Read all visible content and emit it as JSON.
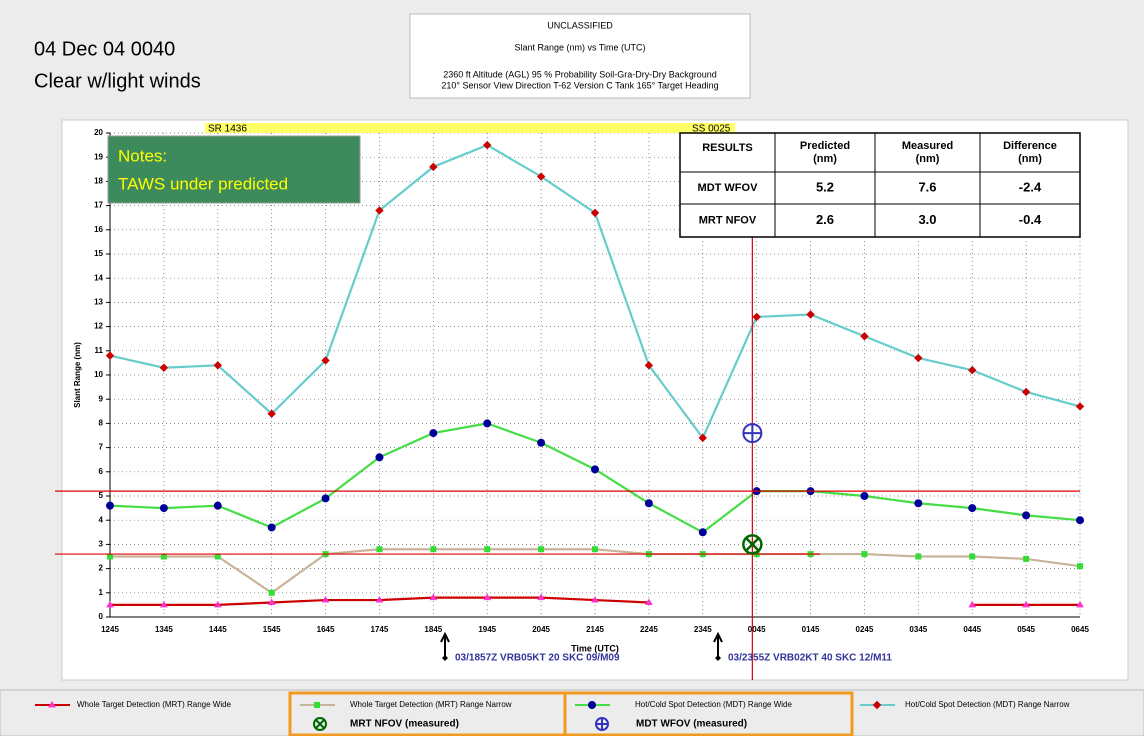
{
  "header": {
    "date_time": "04 Dec 04 0040",
    "weather": "Clear w/light winds"
  },
  "chart_data": {
    "type": "line",
    "classification": "UNCLASSIFIED",
    "title": "Slant Range (nm) vs Time (UTC)",
    "conditions": [
      "2360 ft Altitude (AGL)   95 % Probability   Soil-Gra-Dry-Dry Background",
      "210° Sensor View Direction   T-62 Version C Tank   165° Target Heading"
    ],
    "y_label": "Slant Range (nm)",
    "x_label": "Time (UTC)",
    "categories": [
      "1245",
      "1345",
      "1445",
      "1545",
      "1645",
      "1745",
      "1845",
      "1945",
      "2045",
      "2145",
      "2245",
      "2345",
      "0045",
      "0145",
      "0245",
      "0345",
      "0445",
      "0545",
      "0645"
    ],
    "ylim": [
      0,
      20
    ],
    "yticks": [
      0,
      1,
      2,
      3,
      4,
      5,
      6,
      7,
      8,
      9,
      10,
      11,
      12,
      13,
      14,
      15,
      16,
      17,
      18,
      19,
      20
    ],
    "grid": true,
    "sun_bar": {
      "sunrise": "SR 1436",
      "sunset": "SS 0025"
    },
    "notes": [
      "Notes:",
      "TAWS under predicted"
    ],
    "annotations": [
      "03/1857Z VRB05KT 20 SKC 09/M09",
      "03/2355Z VRB02KT 40 SKC 12/M11"
    ],
    "series": [
      {
        "name": "Whole Target Detection (MRT) Range  Wide",
        "color": "#cc0000",
        "marker": "triangle",
        "marker_color": "#ff33cc",
        "values": [
          0.5,
          0.5,
          0.5,
          0.6,
          0.7,
          0.7,
          0.8,
          0.8,
          0.8,
          0.7,
          0.6,
          null,
          null,
          null,
          null,
          null,
          0.5,
          0.5,
          0.5
        ]
      },
      {
        "name": "Whole Target Detection (MRT) Range  Narrow",
        "color": "#c8b49a",
        "marker": "square",
        "marker_color": "#33dd33",
        "values": [
          2.5,
          2.5,
          2.5,
          1.0,
          2.6,
          2.8,
          2.8,
          2.8,
          2.8,
          2.8,
          2.6,
          2.6,
          2.6,
          2.6,
          2.6,
          2.5,
          2.5,
          2.4,
          2.1
        ]
      },
      {
        "name": "Hot/Cold Spot Detection (MDT) Range  Wide",
        "color": "#44dd44",
        "marker": "circle",
        "marker_color": "#000099",
        "values": [
          4.6,
          4.5,
          4.6,
          3.7,
          4.9,
          6.6,
          7.6,
          8.0,
          7.2,
          6.1,
          4.7,
          3.5,
          5.2,
          5.2,
          5.0,
          4.7,
          4.5,
          4.2,
          4.0
        ]
      },
      {
        "name": "Hot/Cold Spot Detection (MDT) Range  Narrow",
        "color": "#66cccc",
        "marker": "diamond",
        "marker_color": "#cc0000",
        "values": [
          10.8,
          10.3,
          10.4,
          8.4,
          10.6,
          16.8,
          18.6,
          19.5,
          18.2,
          16.7,
          10.4,
          7.4,
          12.4,
          12.5,
          11.6,
          10.7,
          10.2,
          9.3,
          8.7
        ]
      }
    ],
    "measured_legend": [
      "MRT NFOV (measured)",
      "MDT WFOV (measured)"
    ],
    "results": {
      "header": [
        "RESULTS",
        "Predicted (nm)",
        "Measured (nm)",
        "Difference (nm)"
      ],
      "rows": [
        [
          "MDT WFOV",
          5.2,
          7.6,
          -2.4
        ],
        [
          "MRT NFOV",
          2.6,
          {
            "value": 3,
            "label": "3.0"
          },
          -0.4
        ]
      ]
    }
  }
}
